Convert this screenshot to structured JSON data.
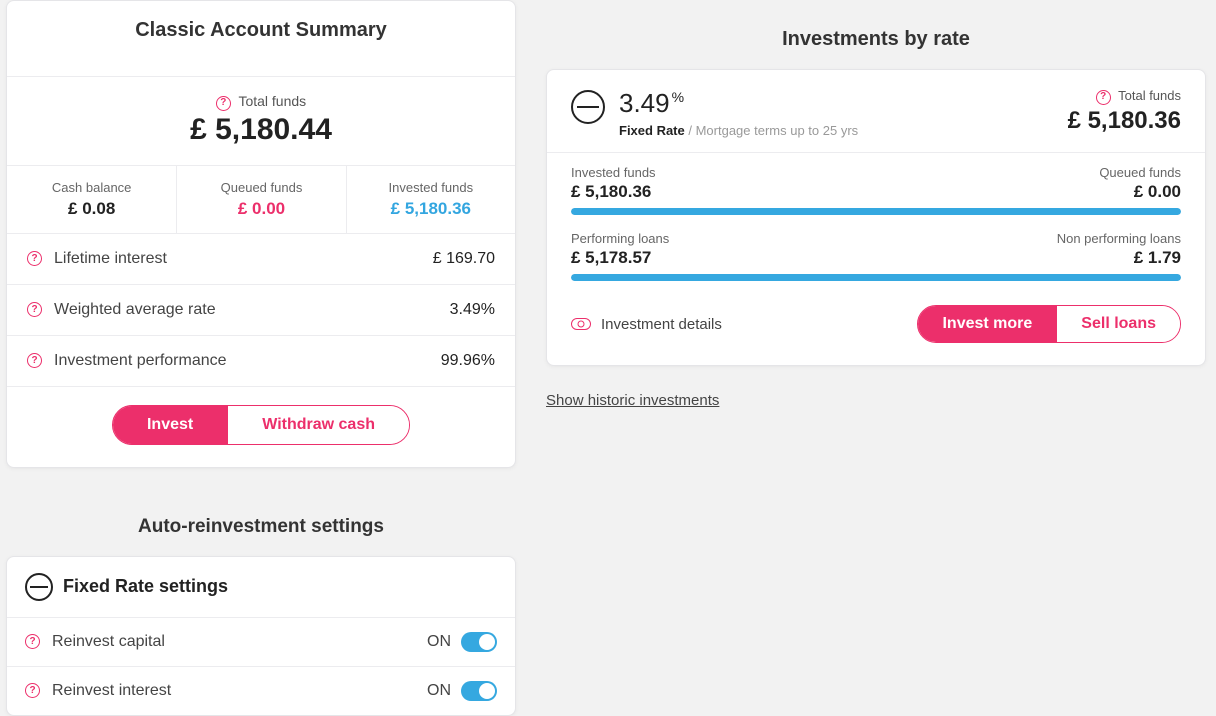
{
  "colors": {
    "accent_pink": "#ec2f6b",
    "accent_blue": "#35a8e0",
    "text_dark": "#222222",
    "text_mid": "#555555",
    "text_light": "#999999",
    "border": "#ececef",
    "background": "#f2f2f2",
    "card_bg": "#ffffff"
  },
  "summary": {
    "title": "Classic Account Summary",
    "total_label": "Total funds",
    "total_value": "£ 5,180.44",
    "columns": {
      "cash": {
        "label": "Cash balance",
        "value": "£ 0.08"
      },
      "queued": {
        "label": "Queued funds",
        "value": "£ 0.00"
      },
      "invested": {
        "label": "Invested funds",
        "value": "£ 5,180.36"
      }
    },
    "metrics": {
      "lifetime_interest": {
        "label": "Lifetime interest",
        "value": "£ 169.70"
      },
      "weighted_avg_rate": {
        "label": "Weighted average rate",
        "value": "3.49%"
      },
      "investment_performance": {
        "label": "Investment performance",
        "value": "99.96%"
      }
    },
    "actions": {
      "invest": "Invest",
      "withdraw": "Withdraw cash"
    }
  },
  "reinvest": {
    "title": "Auto-reinvestment settings",
    "header": "Fixed Rate settings",
    "rows": {
      "capital": {
        "label": "Reinvest capital",
        "state_text": "ON",
        "on": true
      },
      "interest": {
        "label": "Reinvest interest",
        "state_text": "ON",
        "on": true
      }
    }
  },
  "by_rate": {
    "title": "Investments by rate",
    "rate_value": "3.49",
    "rate_suffix": "%",
    "rate_name": "Fixed Rate",
    "rate_desc_sep": " / ",
    "rate_desc": "Mortgage terms up to 25 yrs",
    "total_label": "Total funds",
    "total_value": "£ 5,180.36",
    "bars": {
      "invested_queued": {
        "left_label": "Invested funds",
        "left_value": "£ 5,180.36",
        "right_label": "Queued funds",
        "right_value": "£ 0.00",
        "fill_pct": 100
      },
      "performing": {
        "left_label": "Performing loans",
        "left_value": "£ 5,178.57",
        "right_label": "Non performing loans",
        "right_value": "£ 1.79",
        "fill_pct": 99.97
      }
    },
    "details_label": "Investment details",
    "actions": {
      "invest_more": "Invest more",
      "sell": "Sell loans"
    },
    "historic_link": "Show historic investments"
  }
}
